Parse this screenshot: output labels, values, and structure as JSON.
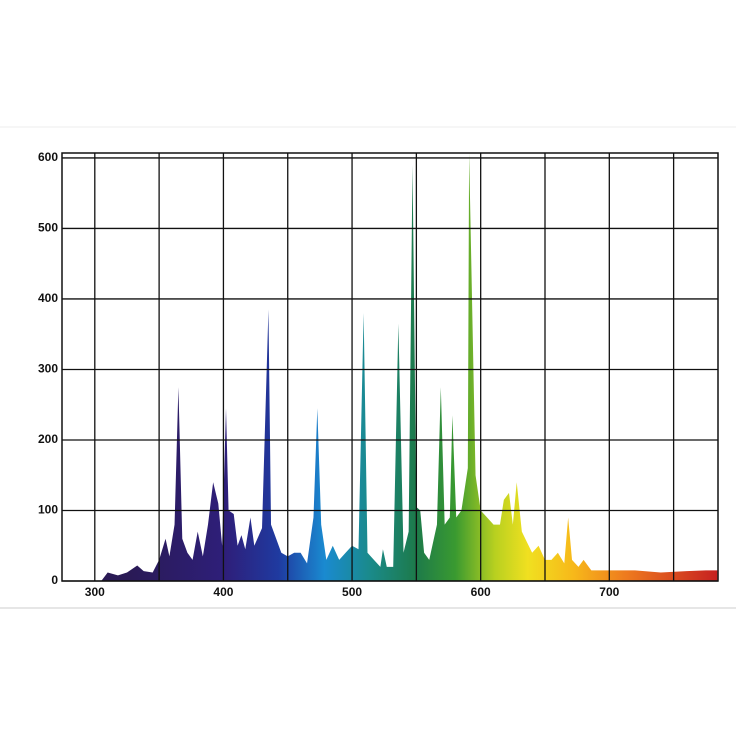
{
  "chart_data": {
    "type": "area",
    "x": [
      305,
      310,
      318,
      325,
      333,
      338,
      345,
      350,
      355,
      358,
      362,
      365,
      368,
      372,
      376,
      380,
      384,
      388,
      392,
      396,
      399,
      402,
      404,
      408,
      411,
      414,
      417,
      421,
      424,
      430,
      435,
      437,
      445,
      450,
      455,
      460,
      465,
      470,
      473,
      476,
      480,
      485,
      490,
      495,
      500,
      505,
      509,
      512,
      517,
      522,
      524,
      527,
      532,
      536,
      540,
      544,
      547,
      550,
      553,
      556,
      560,
      566,
      569,
      572,
      576,
      578,
      581,
      585,
      590,
      591,
      596,
      600,
      605,
      610,
      615,
      618,
      622,
      625,
      628,
      632,
      636,
      640,
      645,
      650,
      655,
      660,
      665,
      668,
      671,
      676,
      680,
      686,
      700,
      720,
      740,
      760,
      775,
      784
    ],
    "values": [
      0,
      12,
      8,
      12,
      22,
      14,
      12,
      30,
      60,
      35,
      80,
      275,
      60,
      40,
      30,
      70,
      35,
      80,
      140,
      110,
      50,
      245,
      100,
      95,
      50,
      65,
      45,
      90,
      50,
      75,
      385,
      80,
      40,
      35,
      40,
      40,
      25,
      90,
      245,
      80,
      30,
      50,
      30,
      40,
      50,
      45,
      380,
      40,
      30,
      20,
      45,
      20,
      20,
      365,
      40,
      70,
      590,
      105,
      100,
      40,
      30,
      80,
      275,
      80,
      90,
      235,
      90,
      100,
      160,
      607,
      150,
      100,
      90,
      80,
      80,
      115,
      125,
      80,
      140,
      70,
      55,
      40,
      50,
      30,
      30,
      40,
      25,
      90,
      30,
      20,
      30,
      15,
      15,
      15,
      12,
      14,
      15,
      15
    ],
    "xlim": [
      274.5,
      784.5
    ],
    "ylim": [
      0,
      607
    ],
    "xticks": [
      300,
      400,
      500,
      600,
      700
    ],
    "xgrid": [
      350,
      450,
      550,
      650,
      750
    ],
    "yticks": [
      0,
      100,
      200,
      300,
      400,
      500,
      600
    ],
    "grid": true
  }
}
